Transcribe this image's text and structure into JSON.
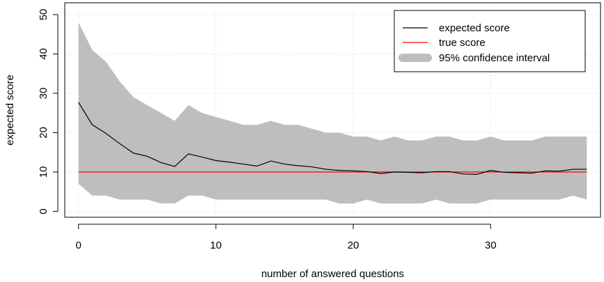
{
  "chart_data": {
    "type": "line",
    "title": "",
    "xlabel": "number of answered questions",
    "ylabel": "expected score",
    "xlim": [
      -1,
      38
    ],
    "ylim": [
      -1.5,
      53
    ],
    "xticks": [
      0,
      10,
      20,
      30
    ],
    "yticks": [
      0,
      10,
      20,
      30,
      40,
      50
    ],
    "grid": true,
    "legend_position": "top-right",
    "x": [
      0,
      1,
      2,
      3,
      4,
      5,
      6,
      7,
      8,
      9,
      10,
      11,
      12,
      13,
      14,
      15,
      16,
      17,
      18,
      19,
      20,
      21,
      22,
      23,
      24,
      25,
      26,
      27,
      28,
      29,
      30,
      31,
      32,
      33,
      34,
      35,
      36,
      37
    ],
    "series": [
      {
        "name": "expected score",
        "color": "#000000",
        "values": [
          27.7,
          22.0,
          19.8,
          17.2,
          14.8,
          14.0,
          12.4,
          11.4,
          14.6,
          13.8,
          12.9,
          12.5,
          12.0,
          11.5,
          12.8,
          12.0,
          11.6,
          11.3,
          10.7,
          10.4,
          10.3,
          10.1,
          9.6,
          10.0,
          9.9,
          9.8,
          10.1,
          10.1,
          9.5,
          9.4,
          10.4,
          9.9,
          9.8,
          9.7,
          10.3,
          10.2,
          10.7,
          10.7
        ]
      },
      {
        "name": "true score",
        "color": "#ff0000",
        "values": [
          10,
          10,
          10,
          10,
          10,
          10,
          10,
          10,
          10,
          10,
          10,
          10,
          10,
          10,
          10,
          10,
          10,
          10,
          10,
          10,
          10,
          10,
          10,
          10,
          10,
          10,
          10,
          10,
          10,
          10,
          10,
          10,
          10,
          10,
          10,
          10,
          10,
          10
        ]
      }
    ],
    "band": {
      "name": "95% confidence interval",
      "color": "#bebebe",
      "upper": [
        48,
        41,
        38,
        33,
        29,
        27,
        25,
        23,
        27,
        25,
        24,
        23,
        22,
        22,
        23,
        22,
        22,
        21,
        20,
        20,
        19,
        19,
        18,
        19,
        18,
        18,
        19,
        19,
        18,
        18,
        19,
        18,
        18,
        18,
        19,
        19,
        19,
        19
      ],
      "lower": [
        7,
        4,
        4,
        3,
        3,
        3,
        2,
        2,
        4,
        4,
        3,
        3,
        3,
        3,
        3,
        3,
        3,
        3,
        3,
        2,
        2,
        3,
        2,
        2,
        2,
        2,
        3,
        2,
        2,
        2,
        3,
        3,
        3,
        3,
        3,
        3,
        4,
        3
      ]
    },
    "legend": [
      "expected score",
      "true score",
      "95% confidence interval"
    ]
  }
}
